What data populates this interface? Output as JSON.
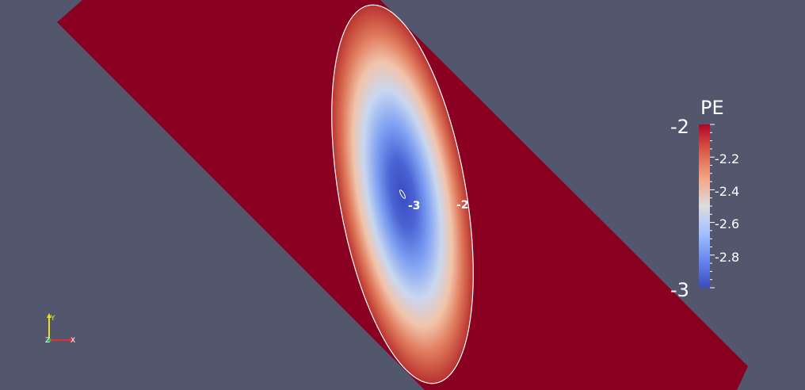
{
  "scene": {
    "background_color": "#52576e",
    "plane_color": "#8a0020",
    "contour_color": "#ffffff"
  },
  "colorbar": {
    "title": "PE",
    "max_label": "-2",
    "min_label": "-3",
    "tick_labels": [
      "-2.2",
      "-2.4",
      "-2.6",
      "-2.8"
    ],
    "colormap": [
      "#b40426",
      "#dd5f4b",
      "#f5a889",
      "#dcdddd",
      "#a5c3fe",
      "#6788ee",
      "#3b4cc0"
    ]
  },
  "contour_labels": {
    "inner": "-3",
    "outer": "-2"
  },
  "orientation_axes": {
    "y": "Y",
    "z": "Z",
    "x": "X",
    "x_color": "#e03030",
    "y_color": "#e8e020",
    "z_color": "#20c040"
  }
}
